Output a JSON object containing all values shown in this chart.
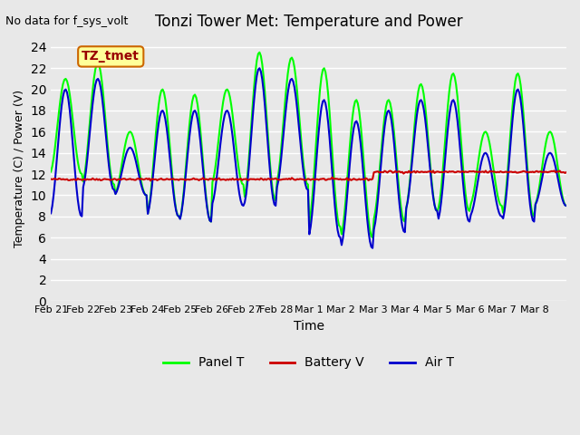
{
  "title": "Tonzi Tower Met: Temperature and Power",
  "top_left_text": "No data for f_sys_volt",
  "xlabel": "Time",
  "ylabel": "Temperature (C) / Power (V)",
  "ylim": [
    0,
    25
  ],
  "yticks": [
    0,
    2,
    4,
    6,
    8,
    10,
    12,
    14,
    16,
    18,
    20,
    22,
    24
  ],
  "xtick_labels": [
    "Feb 21",
    "Feb 22",
    "Feb 23",
    "Feb 24",
    "Feb 25",
    "Feb 26",
    "Feb 27",
    "Feb 28",
    "Mar 1",
    "Mar 2",
    "Mar 3",
    "Mar 4",
    "Mar 5",
    "Mar 6",
    "Mar 7",
    "Mar 8"
  ],
  "n_days": 16,
  "bg_color": "#e8e8e8",
  "grid_color": "#ffffff",
  "panel_t_color": "#00ff00",
  "battery_v_color": "#cc0000",
  "air_t_color": "#0000cc",
  "legend_labels": [
    "Panel T",
    "Battery V",
    "Air T"
  ],
  "annotation_box": "TZ_tmet",
  "annotation_box_color": "#ffff99",
  "annotation_box_border": "#cc6600",
  "day_peaks_panel": [
    21,
    22.5,
    16,
    20,
    19.5,
    20,
    23.5,
    23,
    22,
    19,
    19,
    20.5,
    21.5,
    16,
    21.5,
    16
  ],
  "day_troughs_panel": [
    12,
    11,
    10,
    8,
    7.5,
    11,
    9.5,
    11,
    7,
    6,
    7.5,
    8.5,
    8.5,
    9,
    8,
    9
  ],
  "day_peaks_air": [
    20,
    21,
    14.5,
    18,
    18,
    18,
    22,
    21,
    19,
    17,
    18,
    19,
    19,
    14,
    20,
    14
  ],
  "day_troughs_air": [
    8,
    10.5,
    10,
    8,
    7.5,
    9,
    9,
    10.5,
    6,
    5,
    6.5,
    8.5,
    7.5,
    8,
    7.5,
    9
  ],
  "battery_v_before": 11.5,
  "battery_v_after": 12.2,
  "battery_step_day": 10.0
}
